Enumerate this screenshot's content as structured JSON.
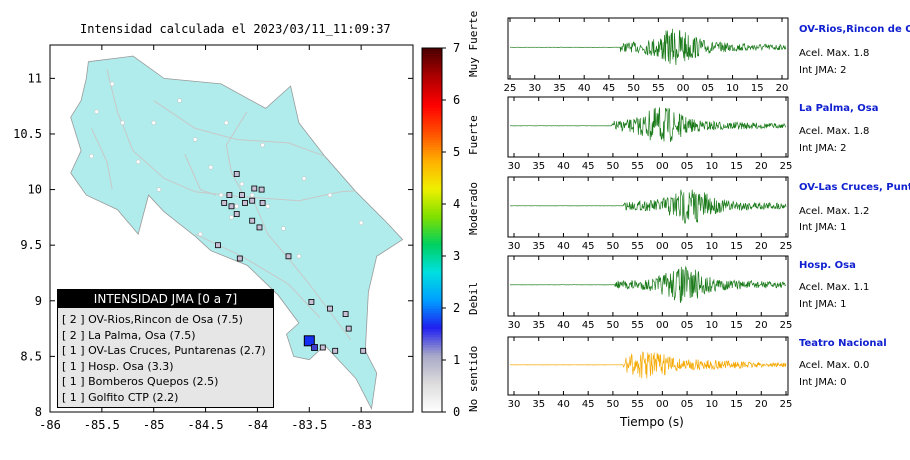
{
  "map": {
    "title": "Intensidad calculada el 2023/03/11_11:09:37",
    "x_ticks": [
      "-86",
      "-85.5",
      "-85",
      "-84.5",
      "-84",
      "-83.5",
      "-83"
    ],
    "y_ticks": [
      "11",
      "10.5",
      "10",
      "9.5",
      "9",
      "8.5",
      "8"
    ],
    "xlim": [
      -86,
      -82.5
    ],
    "ylim": [
      8,
      11.3
    ],
    "land_color": "#b0ecec",
    "legend": {
      "title": "INTENSIDAD JMA [0 a 7]",
      "rows": [
        "[ 2 ]  OV-Rios,Rincon de Osa (7.5)",
        "[ 2 ]  La Palma, Osa (7.5)",
        "[ 1 ]  OV-Las Cruces, Puntarenas (2.7)",
        "[ 1 ]  Hosp. Osa (3.3)",
        "[ 1 ]  Bomberos Quepos (2.5)",
        "[ 1 ]  Golfito CTP (2.2)"
      ]
    }
  },
  "scale": {
    "ticks": [
      "0",
      "1",
      "2",
      "3",
      "4",
      "5",
      "6",
      "7"
    ],
    "labels": [
      "No sentido",
      "Debil",
      "Moderado",
      "Fuerte",
      "Muy Fuerte"
    ]
  },
  "panels": [
    {
      "name": "OV-Rios,Rincon de Osa",
      "acel": "Acel. Max. 1.8",
      "jma": "Int JMA: 2",
      "ticks": [
        "25",
        "30",
        "35",
        "40",
        "45",
        "50",
        "55",
        "00",
        "05",
        "10",
        "15",
        "20"
      ],
      "color": "#1a7a1a",
      "onset": 0.4,
      "peak": 0.6
    },
    {
      "name": "La Palma, Osa",
      "acel": "Acel. Max. 1.8",
      "jma": "Int JMA: 2",
      "ticks": [
        "30",
        "35",
        "40",
        "45",
        "50",
        "55",
        "00",
        "05",
        "10",
        "15",
        "20",
        "25"
      ],
      "color": "#1a7a1a",
      "onset": 0.37,
      "peak": 0.55
    },
    {
      "name": "OV-Las Cruces, Puntarenas",
      "acel": "Acel. Max. 1.2",
      "jma": "Int JMA: 1",
      "ticks": [
        "30",
        "35",
        "40",
        "45",
        "50",
        "55",
        "00",
        "05",
        "10",
        "15",
        "20",
        "25"
      ],
      "color": "#1a7a1a",
      "onset": 0.41,
      "peak": 0.65
    },
    {
      "name": "Hosp. Osa",
      "acel": "Acel. Max. 1.1",
      "jma": "Int JMA: 1",
      "ticks": [
        "30",
        "35",
        "40",
        "45",
        "50",
        "55",
        "00",
        "05",
        "10",
        "15",
        "20",
        "25"
      ],
      "color": "#1a7a1a",
      "onset": 0.38,
      "peak": 0.63
    },
    {
      "name": "Teatro Nacional",
      "acel": "Acel. Max. 0.0",
      "jma": "Int JMA: 0",
      "ticks": [
        "30",
        "35",
        "40",
        "45",
        "50",
        "55",
        "00",
        "05",
        "10",
        "15",
        "20",
        "25"
      ],
      "color": "#f5a800",
      "onset": 0.41,
      "peak": 0.5
    }
  ],
  "x_axis_label": "Tiempo (s)",
  "chart_data": [
    {
      "type": "scatter",
      "title": "Intensidad calculada el 2023/03/11_11:09:37",
      "xlim": [
        -86,
        -82.5
      ],
      "ylim": [
        8,
        11.3
      ],
      "series": [
        {
          "name": "OV-Rios,Rincon de Osa",
          "intensity_jma": 2,
          "value": 7.5
        },
        {
          "name": "La Palma, Osa",
          "intensity_jma": 2,
          "value": 7.5
        },
        {
          "name": "OV-Las Cruces, Puntarenas",
          "intensity_jma": 1,
          "value": 2.7
        },
        {
          "name": "Hosp. Osa",
          "intensity_jma": 1,
          "value": 3.3
        },
        {
          "name": "Bomberos Quepos",
          "intensity_jma": 1,
          "value": 2.5
        },
        {
          "name": "Golfito CTP",
          "intensity_jma": 1,
          "value": 2.2
        }
      ],
      "colorbar": {
        "range": [
          0,
          7
        ],
        "labels": [
          "No sentido",
          "Debil",
          "Moderado",
          "Fuerte",
          "Muy Fuerte"
        ]
      }
    },
    {
      "type": "line",
      "xlabel": "Tiempo (s)",
      "series": [
        {
          "name": "OV-Rios,Rincon de Osa",
          "acel_max": 1.8,
          "int_jma": 2
        },
        {
          "name": "La Palma, Osa",
          "acel_max": 1.8,
          "int_jma": 2
        },
        {
          "name": "OV-Las Cruces, Puntarenas",
          "acel_max": 1.2,
          "int_jma": 1
        },
        {
          "name": "Hosp. Osa",
          "acel_max": 1.1,
          "int_jma": 1
        },
        {
          "name": "Teatro Nacional",
          "acel_max": 0.0,
          "int_jma": 0
        }
      ]
    }
  ]
}
